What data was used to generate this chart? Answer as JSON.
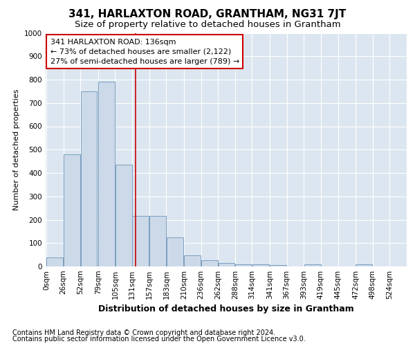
{
  "title": "341, HARLAXTON ROAD, GRANTHAM, NG31 7JT",
  "subtitle": "Size of property relative to detached houses in Grantham",
  "xlabel": "Distribution of detached houses by size in Grantham",
  "ylabel": "Number of detached properties",
  "bin_labels": [
    "0sqm",
    "26sqm",
    "52sqm",
    "79sqm",
    "105sqm",
    "131sqm",
    "157sqm",
    "183sqm",
    "210sqm",
    "236sqm",
    "262sqm",
    "288sqm",
    "314sqm",
    "341sqm",
    "367sqm",
    "393sqm",
    "419sqm",
    "445sqm",
    "472sqm",
    "498sqm",
    "524sqm"
  ],
  "bin_edges": [
    0,
    26,
    52,
    79,
    105,
    131,
    157,
    183,
    210,
    236,
    262,
    288,
    314,
    341,
    367,
    393,
    419,
    445,
    472,
    498,
    524
  ],
  "bar_values": [
    40,
    480,
    750,
    790,
    435,
    215,
    215,
    125,
    48,
    28,
    14,
    10,
    9,
    5,
    0,
    8,
    0,
    0,
    8,
    0,
    0
  ],
  "bar_color": "#ccd9e8",
  "bar_edge_color": "#7a9fc0",
  "property_size": 136,
  "vline_color": "#cc0000",
  "annotation_text": "341 HARLAXTON ROAD: 136sqm\n← 73% of detached houses are smaller (2,122)\n27% of semi-detached houses are larger (789) →",
  "annotation_box_color": "#ffffff",
  "annotation_box_edge": "#cc0000",
  "footnote1": "Contains HM Land Registry data © Crown copyright and database right 2024.",
  "footnote2": "Contains public sector information licensed under the Open Government Licence v3.0.",
  "plot_bg_color": "#dce6f0",
  "ylim": [
    0,
    1000
  ],
  "title_fontsize": 11,
  "subtitle_fontsize": 9.5,
  "xlabel_fontsize": 9,
  "ylabel_fontsize": 8,
  "tick_fontsize": 7.5,
  "annotation_fontsize": 8,
  "footnote_fontsize": 7
}
